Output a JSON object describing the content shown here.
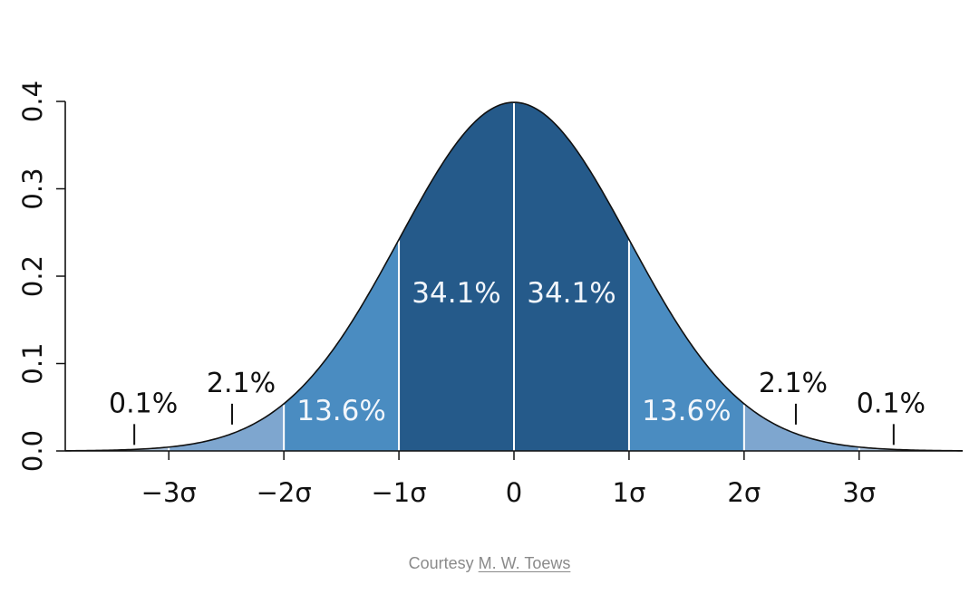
{
  "chart_data": {
    "type": "area",
    "title": "",
    "xlabel": "",
    "ylabel": "",
    "xlim": [
      -3.9,
      3.9
    ],
    "ylim": [
      0,
      0.4
    ],
    "x_ticks": [
      {
        "value": -3,
        "label": "−3σ"
      },
      {
        "value": -2,
        "label": "−2σ"
      },
      {
        "value": -1,
        "label": "−1σ"
      },
      {
        "value": 0,
        "label": "0"
      },
      {
        "value": 1,
        "label": "1σ"
      },
      {
        "value": 2,
        "label": "2σ"
      },
      {
        "value": 3,
        "label": "3σ"
      }
    ],
    "y_ticks": [
      {
        "value": 0.0,
        "label": "0.0"
      },
      {
        "value": 0.1,
        "label": "0.1"
      },
      {
        "value": 0.2,
        "label": "0.2"
      },
      {
        "value": 0.3,
        "label": "0.3"
      },
      {
        "value": 0.4,
        "label": "0.4"
      }
    ],
    "curve": "standard normal density",
    "regions": [
      {
        "from": -3.9,
        "to": -3,
        "percent": "0.1%",
        "color": "#a7bfd9"
      },
      {
        "from": -3,
        "to": -2,
        "percent": "2.1%",
        "color": "#7ea6cf"
      },
      {
        "from": -2,
        "to": -1,
        "percent": "13.6%",
        "color": "#4a8cc1"
      },
      {
        "from": -1,
        "to": 0,
        "percent": "34.1%",
        "color": "#255a8a"
      },
      {
        "from": 0,
        "to": 1,
        "percent": "34.1%",
        "color": "#255a8a"
      },
      {
        "from": 1,
        "to": 2,
        "percent": "13.6%",
        "color": "#4a8cc1"
      },
      {
        "from": 2,
        "to": 3,
        "percent": "2.1%",
        "color": "#7ea6cf"
      },
      {
        "from": 3,
        "to": 3.9,
        "percent": "0.1%",
        "color": "#a7bfd9"
      }
    ],
    "annotations": [
      {
        "text": "0.1%",
        "x": -3.3,
        "pointer": true,
        "inside": false
      },
      {
        "text": "2.1%",
        "x": -2.45,
        "pointer": true,
        "inside": false
      },
      {
        "text": "13.6%",
        "x": -1.5,
        "pointer": false,
        "inside": true
      },
      {
        "text": "34.1%",
        "x": -0.5,
        "pointer": false,
        "inside": true
      },
      {
        "text": "34.1%",
        "x": 0.5,
        "pointer": false,
        "inside": true
      },
      {
        "text": "13.6%",
        "x": 1.5,
        "pointer": false,
        "inside": true
      },
      {
        "text": "2.1%",
        "x": 2.45,
        "pointer": true,
        "inside": false
      },
      {
        "text": "0.1%",
        "x": 3.3,
        "pointer": true,
        "inside": false
      }
    ],
    "grid": false,
    "legend": "none"
  },
  "credit": {
    "prefix": "Courtesy",
    "author": "M. W. Toews"
  }
}
